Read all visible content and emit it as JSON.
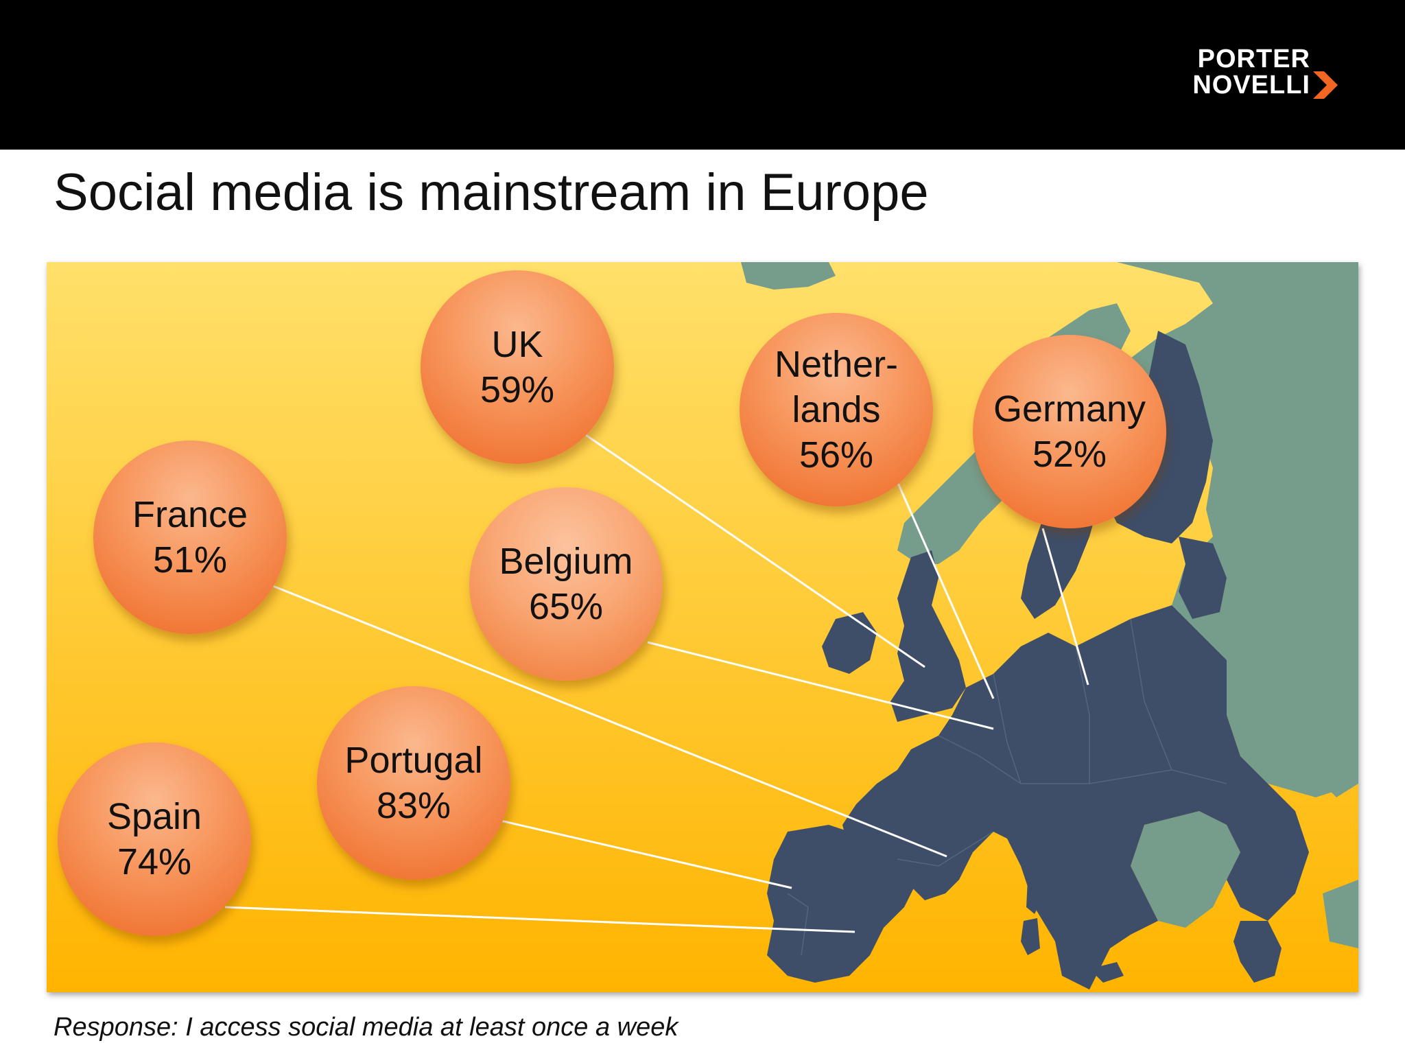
{
  "brand": {
    "line1": "PORTER",
    "line2": "NOVELLI",
    "chevron_color": "#f26522"
  },
  "title": "Social media is mainstream in Europe",
  "footnote": "Response: I access social media at least once a week",
  "colors": {
    "background_top": "#ffe06a",
    "background_bottom": "#ffb400",
    "data_countries": "#3e4e69",
    "other_land": "#769d8b",
    "bubble": "#f4834a",
    "connector": "#ffffff"
  },
  "map_data": {
    "metric": "Share accessing social media at least once a week",
    "countries": [
      {
        "name": "UK",
        "label_lines": [
          "UK",
          "59%"
        ],
        "value": 59
      },
      {
        "name": "Netherlands",
        "label_lines": [
          "Nether-",
          "lands",
          "56%"
        ],
        "value": 56
      },
      {
        "name": "Germany",
        "label_lines": [
          "Germany",
          "52%"
        ],
        "value": 52
      },
      {
        "name": "France",
        "label_lines": [
          "France",
          "51%"
        ],
        "value": 51
      },
      {
        "name": "Belgium",
        "label_lines": [
          "Belgium",
          "65%"
        ],
        "value": 65
      },
      {
        "name": "Portugal",
        "label_lines": [
          "Portugal",
          "83%"
        ],
        "value": 83
      },
      {
        "name": "Spain",
        "label_lines": [
          "Spain",
          "74%"
        ],
        "value": 74
      }
    ]
  }
}
